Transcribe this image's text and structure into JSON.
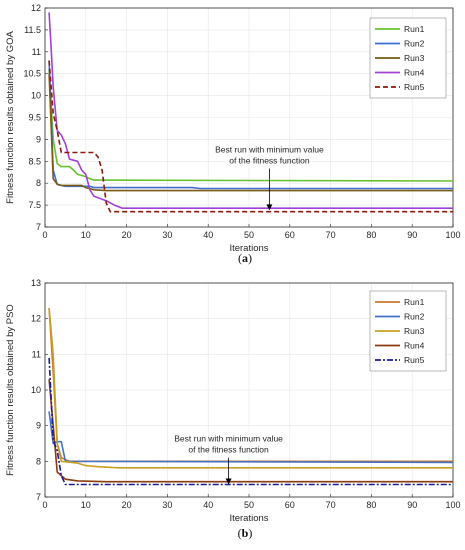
{
  "chart_data": [
    {
      "type": "line",
      "panel": "a",
      "caption_open": "(",
      "caption_letter": "a",
      "caption_close": ")",
      "xlabel": "Iterations",
      "ylabel": "Fitness function results obtained by GOA",
      "xlim": [
        0,
        100
      ],
      "ylim": [
        7,
        12
      ],
      "xticks": [
        0,
        10,
        20,
        30,
        40,
        50,
        60,
        70,
        80,
        90,
        100
      ],
      "yticks": [
        7,
        7.5,
        8,
        8.5,
        9,
        9.5,
        10,
        10.5,
        11,
        11.5,
        12
      ],
      "grid": true,
      "legend_position": "top-right",
      "annotation": {
        "lines": [
          "Best run with minimum value",
          "of the fitness function"
        ],
        "arrow_to": [
          55,
          7.38
        ],
        "text_at": [
          55,
          8.7
        ]
      },
      "series": [
        {
          "name": "Run1",
          "color": "#66c22e",
          "dash": "",
          "points": [
            [
              1,
              10.6
            ],
            [
              2,
              9.0
            ],
            [
              3,
              8.45
            ],
            [
              4,
              8.38
            ],
            [
              6,
              8.38
            ],
            [
              7,
              8.3
            ],
            [
              8,
              8.2
            ],
            [
              10,
              8.15
            ],
            [
              11,
              8.1
            ],
            [
              12,
              8.07
            ],
            [
              100,
              8.05
            ]
          ]
        },
        {
          "name": "Run2",
          "color": "#3c6fd0",
          "dash": "",
          "points": [
            [
              1,
              10.8
            ],
            [
              2,
              8.3
            ],
            [
              3,
              7.97
            ],
            [
              5,
              7.93
            ],
            [
              11,
              7.93
            ],
            [
              12,
              7.9
            ],
            [
              36,
              7.9
            ],
            [
              38,
              7.88
            ],
            [
              100,
              7.88
            ]
          ]
        },
        {
          "name": "Run3",
          "color": "#7a5a12",
          "dash": "",
          "points": [
            [
              1,
              10.5
            ],
            [
              2,
              8.1
            ],
            [
              3,
              7.98
            ],
            [
              4,
              7.95
            ],
            [
              9,
              7.95
            ],
            [
              10,
              7.9
            ],
            [
              12,
              7.85
            ],
            [
              15,
              7.83
            ],
            [
              100,
              7.83
            ]
          ]
        },
        {
          "name": "Run4",
          "color": "#a040d8",
          "dash": "",
          "points": [
            [
              1,
              11.9
            ],
            [
              1.5,
              11.1
            ],
            [
              2,
              10.2
            ],
            [
              3,
              9.2
            ],
            [
              4,
              9.1
            ],
            [
              5,
              8.9
            ],
            [
              6,
              8.55
            ],
            [
              8,
              8.5
            ],
            [
              9,
              8.3
            ],
            [
              10,
              8.2
            ],
            [
              11,
              7.85
            ],
            [
              12,
              7.7
            ],
            [
              15,
              7.6
            ],
            [
              17,
              7.5
            ],
            [
              19,
              7.43
            ],
            [
              100,
              7.43
            ]
          ]
        },
        {
          "name": "Run5",
          "color": "#8b1a0a",
          "dash": "5,3",
          "points": [
            [
              1,
              10.8
            ],
            [
              2,
              9.6
            ],
            [
              3,
              9.2
            ],
            [
              4,
              8.7
            ],
            [
              12,
              8.7
            ],
            [
              13,
              8.6
            ],
            [
              14,
              8.3
            ],
            [
              15,
              7.55
            ],
            [
              16,
              7.35
            ],
            [
              100,
              7.35
            ]
          ]
        }
      ]
    },
    {
      "type": "line",
      "panel": "b",
      "caption_open": "(",
      "caption_letter": "b",
      "caption_close": ")",
      "xlabel": "Iterations",
      "ylabel": "Fitness function results obtained by PSO",
      "xlim": [
        0,
        100
      ],
      "ylim": [
        7,
        13
      ],
      "xticks": [
        0,
        10,
        20,
        30,
        40,
        50,
        60,
        70,
        80,
        90,
        100
      ],
      "yticks": [
        7,
        8,
        9,
        10,
        11,
        12,
        13
      ],
      "grid": true,
      "legend_position": "top-right",
      "annotation": {
        "lines": [
          "Best run with minimum value",
          "of the fitness function"
        ],
        "arrow_to": [
          45,
          7.35
        ],
        "text_at": [
          45,
          8.55
        ]
      },
      "series": [
        {
          "name": "Run1",
          "color": "#c87a30",
          "dash": "",
          "points": [
            [
              1,
              12.3
            ],
            [
              2,
              10.5
            ],
            [
              3,
              8.5
            ],
            [
              4,
              8.1
            ],
            [
              6,
              8.0
            ],
            [
              100,
              8.0
            ]
          ]
        },
        {
          "name": "Run2",
          "color": "#4472c4",
          "dash": "",
          "points": [
            [
              1,
              9.4
            ],
            [
              2,
              8.5
            ],
            [
              3,
              8.55
            ],
            [
              4,
              8.55
            ],
            [
              5,
              8.0
            ],
            [
              100,
              7.97
            ]
          ]
        },
        {
          "name": "Run3",
          "color": "#c8a020",
          "dash": "",
          "points": [
            [
              1,
              12.3
            ],
            [
              2,
              11.0
            ],
            [
              3,
              8.5
            ],
            [
              4,
              8.0
            ],
            [
              8,
              7.95
            ],
            [
              10,
              7.88
            ],
            [
              13,
              7.85
            ],
            [
              18,
              7.82
            ],
            [
              100,
              7.82
            ]
          ]
        },
        {
          "name": "Run4",
          "color": "#8b3a0a",
          "dash": "",
          "points": [
            [
              1,
              10.3
            ],
            [
              2,
              9.0
            ],
            [
              3,
              7.7
            ],
            [
              5,
              7.5
            ],
            [
              8,
              7.45
            ],
            [
              15,
              7.43
            ],
            [
              100,
              7.43
            ]
          ]
        },
        {
          "name": "Run5",
          "color": "#1a1a9e",
          "dash": "6,2,2,2",
          "points": [
            [
              1,
              10.9
            ],
            [
              2,
              8.6
            ],
            [
              3,
              8.3
            ],
            [
              4,
              7.6
            ],
            [
              5,
              7.35
            ],
            [
              100,
              7.35
            ]
          ]
        }
      ]
    }
  ]
}
